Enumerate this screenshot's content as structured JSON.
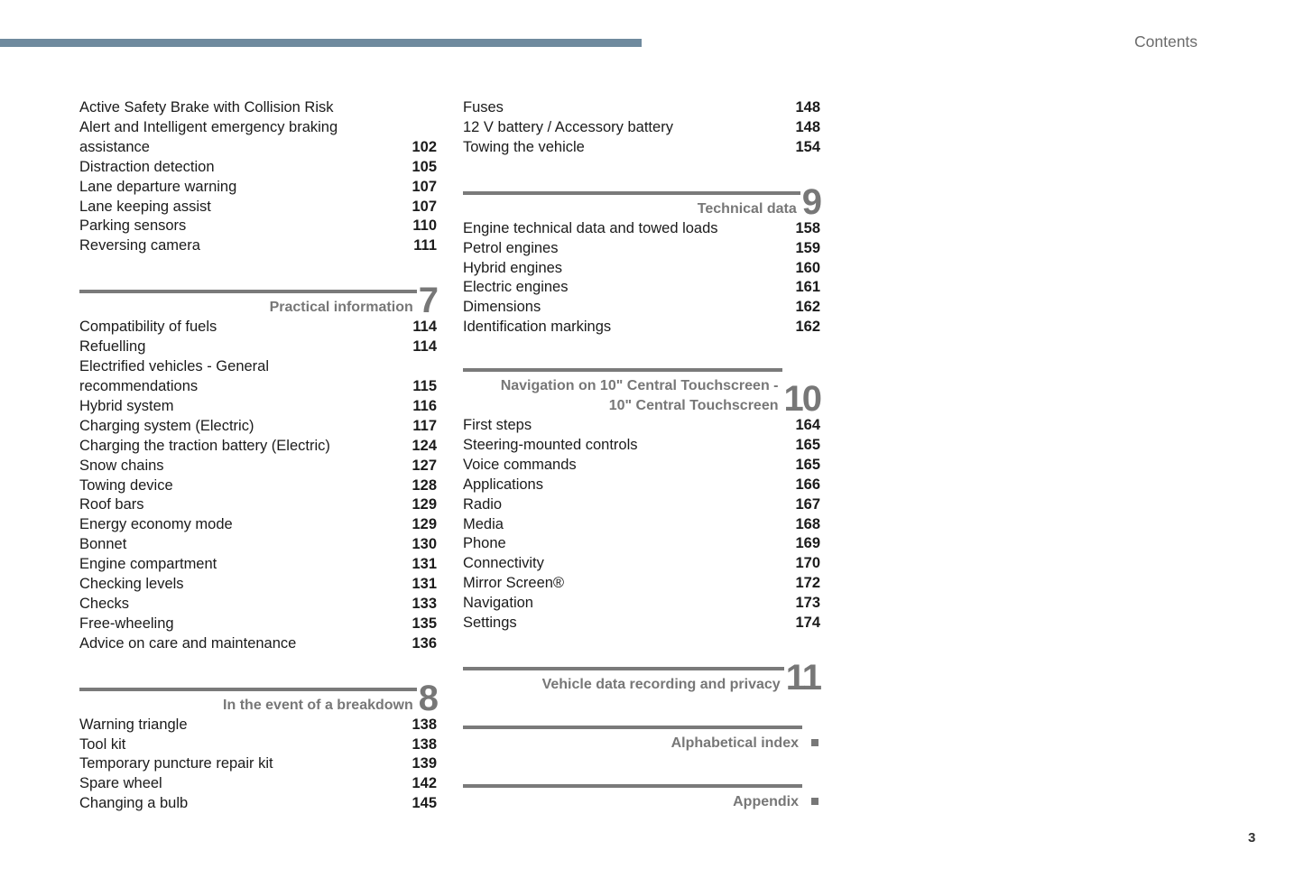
{
  "header": {
    "running_title": "Contents",
    "bar_color": "#6f8a9e"
  },
  "page_number": "3",
  "columns": [
    [
      {
        "type": "entry",
        "title": "Active Safety Brake with Collision Risk\nAlert and Intelligent emergency braking\nassistance",
        "page": "102"
      },
      {
        "type": "entry",
        "title": "Distraction detection",
        "page": "105"
      },
      {
        "type": "entry",
        "title": "Lane departure warning",
        "page": "107"
      },
      {
        "type": "entry",
        "title": "Lane keeping assist",
        "page": "107"
      },
      {
        "type": "entry",
        "title": "Parking sensors",
        "page": "110"
      },
      {
        "type": "entry",
        "title": "Reversing camera",
        "page": "111"
      },
      {
        "type": "section",
        "title": "Practical information",
        "number": "7"
      },
      {
        "type": "entry",
        "title": "Compatibility of fuels",
        "page": "114"
      },
      {
        "type": "entry",
        "title": "Refuelling",
        "page": "114"
      },
      {
        "type": "entry",
        "title": "Electrified vehicles - General\nrecommendations",
        "page": "115"
      },
      {
        "type": "entry",
        "title": "Hybrid system",
        "page": "116"
      },
      {
        "type": "entry",
        "title": "Charging system (Electric)",
        "page": "117"
      },
      {
        "type": "entry",
        "title": "Charging the traction battery (Electric)",
        "page": "124"
      },
      {
        "type": "entry",
        "title": "Snow chains",
        "page": "127"
      },
      {
        "type": "entry",
        "title": "Towing device",
        "page": "128"
      },
      {
        "type": "entry",
        "title": "Roof bars",
        "page": "129"
      },
      {
        "type": "entry",
        "title": "Energy economy mode",
        "page": "129"
      },
      {
        "type": "entry",
        "title": "Bonnet",
        "page": "130"
      },
      {
        "type": "entry",
        "title": "Engine compartment",
        "page": "131"
      },
      {
        "type": "entry",
        "title": "Checking levels",
        "page": "131"
      },
      {
        "type": "entry",
        "title": "Checks",
        "page": "133"
      },
      {
        "type": "entry",
        "title": "Free-wheeling",
        "page": "135"
      },
      {
        "type": "entry",
        "title": "Advice on care and maintenance",
        "page": "136"
      },
      {
        "type": "section",
        "title": "In the event of a breakdown",
        "number": "8"
      },
      {
        "type": "entry",
        "title": "Warning triangle",
        "page": "138"
      },
      {
        "type": "entry",
        "title": "Tool kit",
        "page": "138"
      },
      {
        "type": "entry",
        "title": "Temporary puncture repair kit",
        "page": "139"
      },
      {
        "type": "entry",
        "title": "Spare wheel",
        "page": "142"
      },
      {
        "type": "entry",
        "title": "Changing a bulb",
        "page": "145"
      }
    ],
    [
      {
        "type": "entry",
        "title": "Fuses",
        "page": "148"
      },
      {
        "type": "entry",
        "title": "12 V battery / Accessory battery",
        "page": "148"
      },
      {
        "type": "entry",
        "title": "Towing the vehicle",
        "page": "154"
      },
      {
        "type": "section",
        "title": "Technical data",
        "number": "9"
      },
      {
        "type": "entry",
        "title": "Engine technical data and towed loads",
        "page": "158"
      },
      {
        "type": "entry",
        "title": "Petrol engines",
        "page": "159"
      },
      {
        "type": "entry",
        "title": "Hybrid engines",
        "page": "160"
      },
      {
        "type": "entry",
        "title": "Electric engines",
        "page": "161"
      },
      {
        "type": "entry",
        "title": "Dimensions",
        "page": "162"
      },
      {
        "type": "entry",
        "title": "Identification markings",
        "page": "162"
      },
      {
        "type": "section",
        "title": "Navigation on 10\" Central Touchscreen -\n10\" Central Touchscreen",
        "number": "10"
      },
      {
        "type": "entry",
        "title": "First steps",
        "page": "164"
      },
      {
        "type": "entry",
        "title": "Steering-mounted controls",
        "page": "165"
      },
      {
        "type": "entry",
        "title": "Voice commands",
        "page": "165"
      },
      {
        "type": "entry",
        "title": "Applications",
        "page": "166"
      },
      {
        "type": "entry",
        "title": "Radio",
        "page": "167"
      },
      {
        "type": "entry",
        "title": "Media",
        "page": "168"
      },
      {
        "type": "entry",
        "title": "Phone",
        "page": "169"
      },
      {
        "type": "entry",
        "title": "Connectivity",
        "page": "170"
      },
      {
        "type": "entry",
        "title": "Mirror Screen®",
        "page": "172"
      },
      {
        "type": "entry",
        "title": "Navigation",
        "page": "173"
      },
      {
        "type": "entry",
        "title": "Settings",
        "page": "174"
      },
      {
        "type": "section",
        "title": "Vehicle data recording and privacy",
        "number": "11"
      },
      {
        "type": "section",
        "title": "Alphabetical index",
        "marker": "square-icon"
      },
      {
        "type": "section",
        "title": "Appendix",
        "marker": "square-icon"
      }
    ]
  ]
}
